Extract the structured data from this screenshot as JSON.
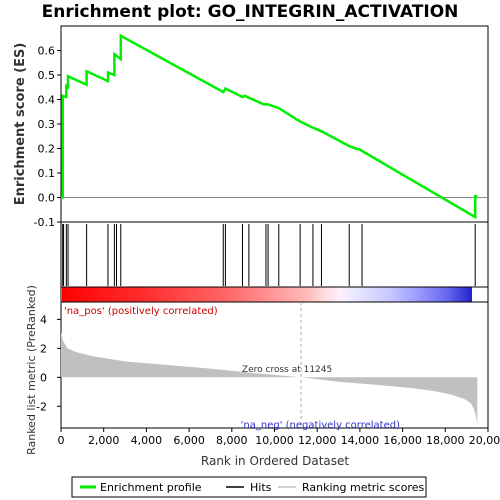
{
  "chart_data": {
    "type": "line",
    "title": "Enrichment plot: GO_INTEGRIN_ACTIVATION",
    "top_panel": {
      "ylabel": "Enrichment score (ES)",
      "ylim": [
        -0.1,
        0.7
      ],
      "yticks": [
        "-0.1",
        "0.0",
        "0.1",
        "0.2",
        "0.3",
        "0.4",
        "0.5",
        "0.6"
      ],
      "ytick_values": [
        -0.1,
        0.0,
        0.1,
        0.2,
        0.3,
        0.4,
        0.5,
        0.6
      ],
      "series": [
        {
          "name": "Enrichment profile",
          "color": "#00ee00",
          "x": [
            0,
            80,
            80,
            250,
            250,
            330,
            330,
            1200,
            1200,
            2200,
            2200,
            2500,
            2500,
            2800,
            2800,
            7600,
            7700,
            8500,
            8600,
            9500,
            9700,
            10200,
            11200,
            11800,
            12200,
            13500,
            13800,
            14000,
            19400,
            19400,
            19500
          ],
          "values": [
            0.0,
            0.0,
            0.415,
            0.41,
            0.455,
            0.45,
            0.495,
            0.46,
            0.515,
            0.475,
            0.51,
            0.5,
            0.585,
            0.565,
            0.66,
            0.43,
            0.445,
            0.41,
            0.415,
            0.38,
            0.38,
            0.365,
            0.31,
            0.285,
            0.27,
            0.21,
            0.2,
            0.195,
            -0.08,
            0.005,
            0.005
          ]
        }
      ]
    },
    "hits": {
      "name": "Hits",
      "color": "#000000",
      "x": [
        80,
        120,
        250,
        330,
        1200,
        2200,
        2500,
        2600,
        2800,
        7600,
        7700,
        8500,
        8800,
        9600,
        9700,
        10200,
        11200,
        11800,
        12200,
        13500,
        14100,
        19400
      ]
    },
    "ranking": {
      "name": "Ranking metric scores",
      "ylabel": "Ranked list metric (PreRanked)",
      "ylim": [
        -3.5,
        5.2
      ],
      "yticks": [
        "-2",
        "0",
        "2",
        "4"
      ],
      "ytick_values": [
        -2,
        0,
        2,
        4
      ],
      "zero_cross_label": "Zero cross at 11245",
      "zero_cross": 11245,
      "pos_label": "'na_pos' (positively correlated)",
      "neg_label": "'na_neg' (negatively correlated)",
      "profile_x": [
        0,
        100,
        300,
        700,
        1500,
        3000,
        5000,
        7000,
        9000,
        11245,
        13000,
        15000,
        16500,
        17500,
        18300,
        18900,
        19200,
        19350,
        19450,
        19500
      ],
      "profile_values": [
        3.1,
        2.5,
        2.0,
        1.75,
        1.45,
        1.1,
        0.85,
        0.6,
        0.3,
        0.0,
        -0.3,
        -0.55,
        -0.75,
        -0.95,
        -1.2,
        -1.5,
        -1.8,
        -2.2,
        -2.8,
        -3.3
      ]
    },
    "xlabel": "Rank in Ordered Dataset",
    "xlim": [
      0,
      20000
    ],
    "xticks": [
      "0",
      "2,000",
      "4,000",
      "6,000",
      "8,000",
      "10,000",
      "12,000",
      "14,000",
      "16,000",
      "18,000",
      "20,000"
    ],
    "xtick_values": [
      0,
      2000,
      4000,
      6000,
      8000,
      10000,
      12000,
      14000,
      16000,
      18000,
      20000
    ],
    "n_genes": 19500,
    "legend": {
      "placement": "bottom",
      "entries": [
        {
          "label": "Enrichment profile",
          "color": "#00ee00"
        },
        {
          "label": "Hits",
          "color": "#000000"
        },
        {
          "label": "Ranking metric scores",
          "color": "#c0c0c0"
        }
      ]
    }
  }
}
